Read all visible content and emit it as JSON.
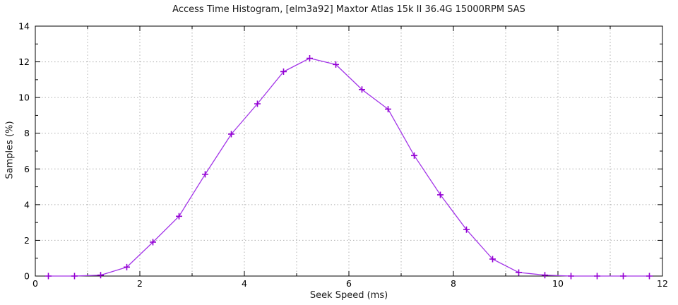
{
  "chart_data": {
    "type": "line",
    "title": "Access Time Histogram, [elm3a92] Maxtor Atlas 15k II 36.4G 15000RPM SAS",
    "xlabel": "Seek Speed (ms)",
    "ylabel": "Samples (%)",
    "xlim": [
      0,
      12
    ],
    "ylim": [
      0,
      14
    ],
    "x_major_ticks": [
      0,
      2,
      4,
      6,
      8,
      10,
      12
    ],
    "x_minor_ticks": [
      1,
      3,
      5,
      7,
      9,
      11
    ],
    "y_major_ticks": [
      0,
      2,
      4,
      6,
      8,
      10,
      12,
      14
    ],
    "y_minor_ticks": [
      1,
      3,
      5,
      7,
      9,
      11,
      13
    ],
    "x_grid_lines": [
      1,
      2,
      3,
      4,
      5,
      6,
      7,
      8,
      9,
      10,
      11
    ],
    "y_grid_lines": [
      2,
      4,
      6,
      8,
      10,
      12
    ],
    "grid": true,
    "grid_style": "dotted",
    "legend_position": "none",
    "marker": "plus",
    "series": [
      {
        "name": "samples",
        "x": [
          0.25,
          0.75,
          1.25,
          1.75,
          2.25,
          2.75,
          3.25,
          3.75,
          4.25,
          4.75,
          5.25,
          5.75,
          6.25,
          6.75,
          7.25,
          7.75,
          8.25,
          8.75,
          9.25,
          9.75,
          10.25,
          10.75,
          11.25,
          11.75
        ],
        "y": [
          0,
          0,
          0.05,
          0.5,
          1.9,
          3.35,
          5.7,
          7.95,
          9.65,
          11.45,
          12.2,
          11.85,
          10.45,
          9.35,
          6.75,
          4.55,
          2.6,
          0.95,
          0.2,
          0.05,
          0,
          0,
          0,
          0
        ]
      }
    ],
    "colors": {
      "line": "#a335e8",
      "marker": "#9400d3",
      "grid": "#b0b0b0",
      "axis": "#000000",
      "text": "#000000",
      "background": "#ffffff"
    }
  }
}
